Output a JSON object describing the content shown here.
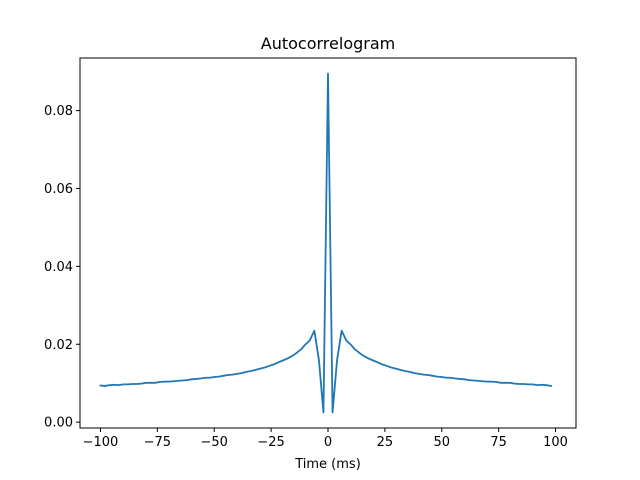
{
  "chart_data": {
    "type": "line",
    "title": "Autocorrelogram",
    "xlabel": "Time (ms)",
    "ylabel": "",
    "xlim": [
      -109,
      109
    ],
    "ylim": [
      -0.0015,
      0.0935
    ],
    "xticks": [
      -100,
      -75,
      -50,
      -25,
      0,
      25,
      50,
      75,
      100
    ],
    "xtick_labels": [
      "−100",
      "−75",
      "−50",
      "−25",
      "0",
      "25",
      "50",
      "75",
      "100"
    ],
    "yticks": [
      0.0,
      0.02,
      0.04,
      0.06,
      0.08
    ],
    "ytick_labels": [
      "0.00",
      "0.02",
      "0.04",
      "0.06",
      "0.08"
    ],
    "grid": false,
    "legend": "none",
    "series": [
      {
        "color": "#1f77b4",
        "x": [
          -100,
          -98,
          -96,
          -94,
          -92,
          -90,
          -88,
          -86,
          -84,
          -82,
          -80,
          -78,
          -76,
          -74,
          -72,
          -70,
          -68,
          -66,
          -64,
          -62,
          -60,
          -58,
          -56,
          -54,
          -52,
          -50,
          -48,
          -46,
          -44,
          -42,
          -40,
          -38,
          -36,
          -34,
          -32,
          -30,
          -28,
          -26,
          -24,
          -22,
          -20,
          -18,
          -16,
          -14,
          -12,
          -10,
          -8,
          -6,
          -4,
          -2,
          0,
          2,
          4,
          6,
          8,
          10,
          12,
          14,
          16,
          18,
          20,
          22,
          24,
          26,
          28,
          30,
          32,
          34,
          36,
          38,
          40,
          42,
          44,
          46,
          48,
          50,
          52,
          54,
          56,
          58,
          60,
          62,
          64,
          66,
          68,
          70,
          72,
          74,
          76,
          78,
          80,
          82,
          84,
          86,
          88,
          90,
          92,
          94,
          96,
          98
        ],
        "y": [
          0.0094,
          0.0093,
          0.0095,
          0.0096,
          0.0095,
          0.0097,
          0.0097,
          0.0098,
          0.0098,
          0.0099,
          0.0101,
          0.0101,
          0.0101,
          0.0103,
          0.0104,
          0.0104,
          0.0105,
          0.0106,
          0.0107,
          0.0108,
          0.011,
          0.0111,
          0.0112,
          0.0114,
          0.0114,
          0.0116,
          0.0117,
          0.0119,
          0.0121,
          0.0122,
          0.0124,
          0.0126,
          0.0129,
          0.0131,
          0.0134,
          0.0137,
          0.014,
          0.0144,
          0.0148,
          0.0153,
          0.0158,
          0.0163,
          0.0169,
          0.0177,
          0.0186,
          0.0199,
          0.021,
          0.0235,
          0.016,
          0.0025,
          0.0895,
          0.0025,
          0.016,
          0.0235,
          0.021,
          0.0199,
          0.0186,
          0.0177,
          0.0169,
          0.0163,
          0.0158,
          0.0153,
          0.0148,
          0.0144,
          0.014,
          0.0137,
          0.0134,
          0.0131,
          0.0129,
          0.0126,
          0.0124,
          0.0122,
          0.0121,
          0.0119,
          0.0117,
          0.0116,
          0.0114,
          0.0114,
          0.0112,
          0.0111,
          0.011,
          0.0108,
          0.0107,
          0.0106,
          0.0105,
          0.0104,
          0.0104,
          0.0103,
          0.0101,
          0.0101,
          0.0101,
          0.0099,
          0.0098,
          0.0098,
          0.0097,
          0.0097,
          0.0095,
          0.0096,
          0.0095,
          0.0093
        ]
      }
    ]
  }
}
